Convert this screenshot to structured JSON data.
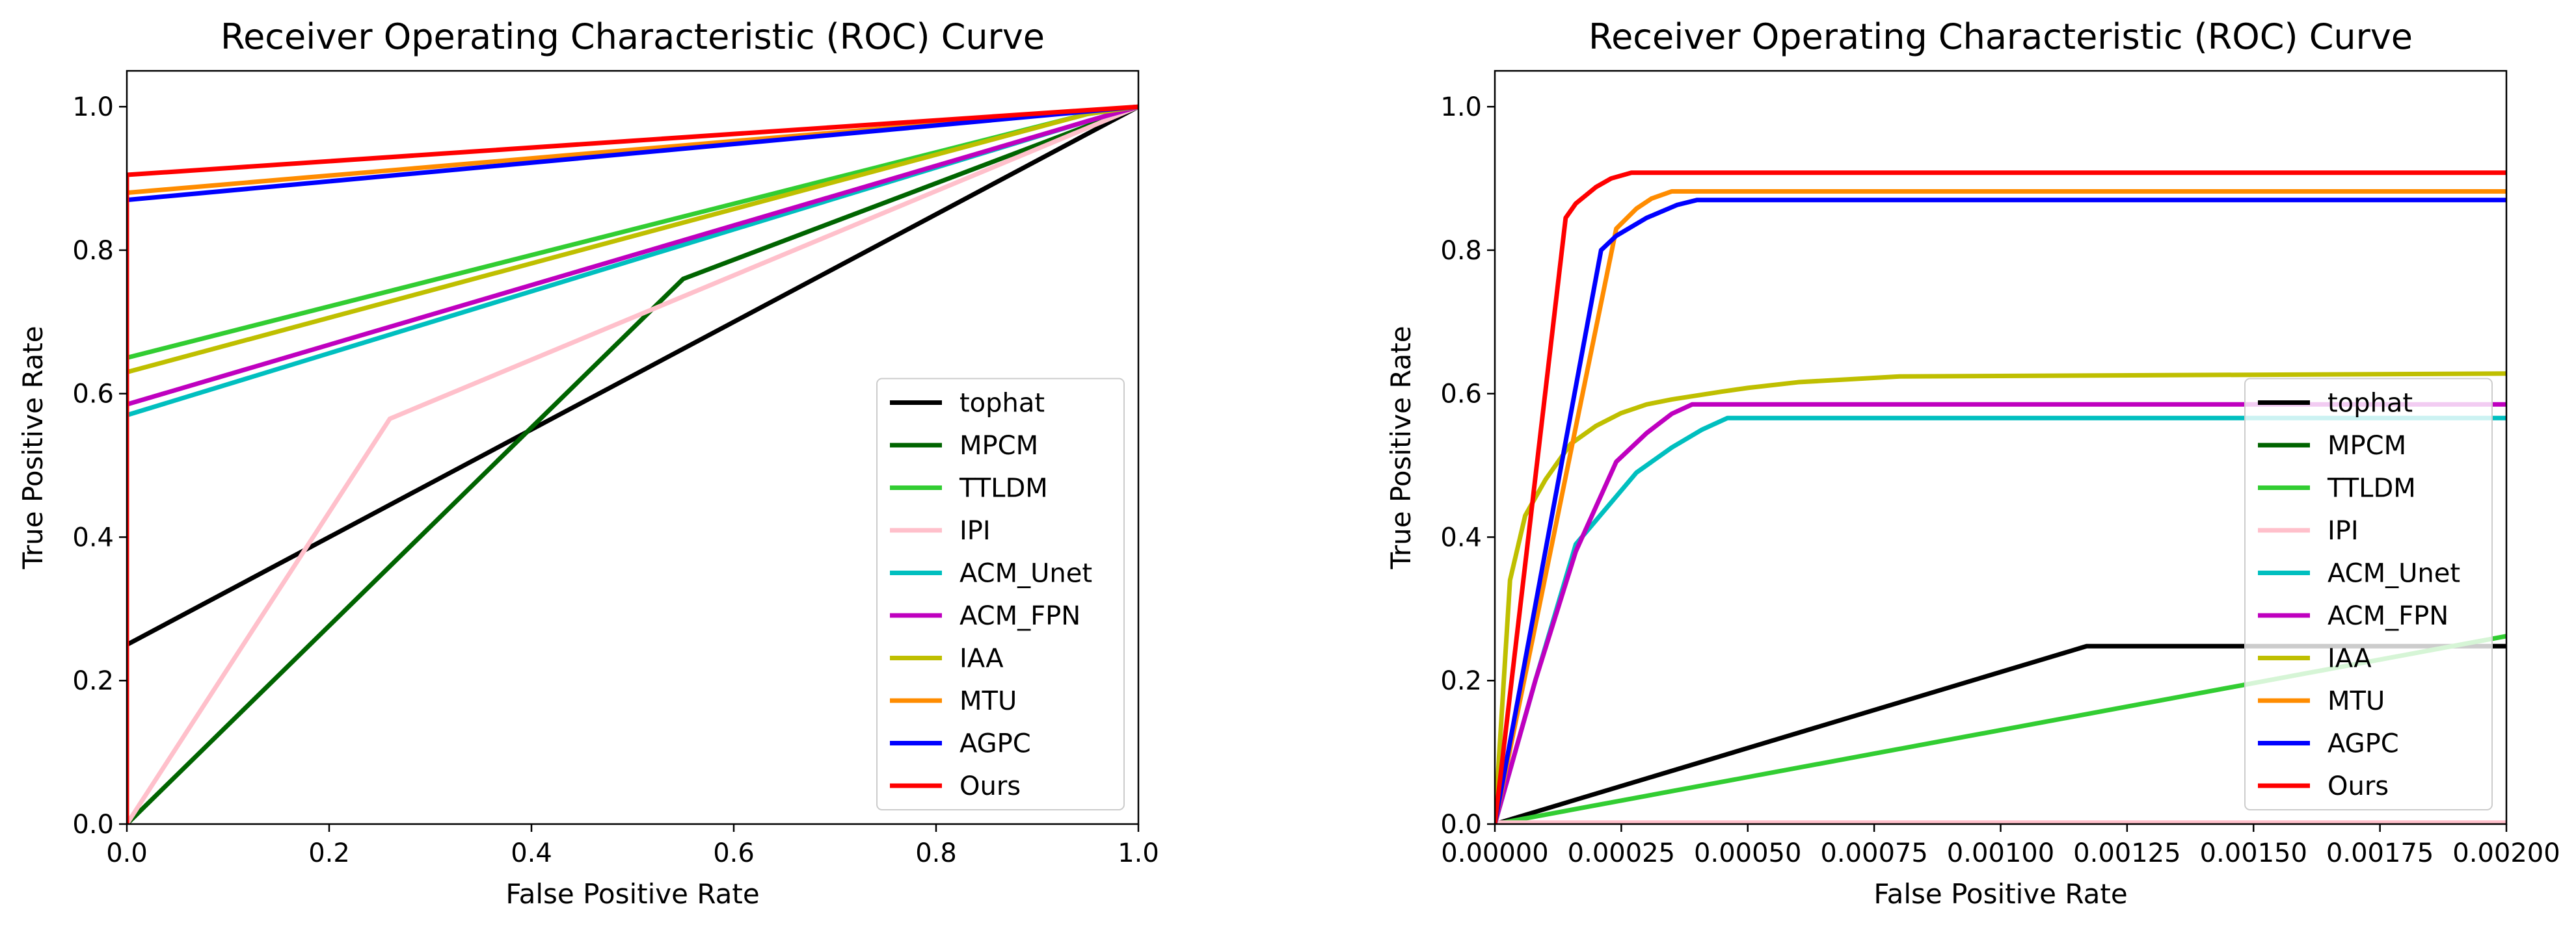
{
  "chart_data": [
    {
      "type": "line",
      "title": "Receiver Operating Characteristic (ROC) Curve",
      "xlabel": "False Positive Rate",
      "ylabel": "True Positive Rate",
      "xlim": [
        0,
        1
      ],
      "ylim": [
        0,
        1.05
      ],
      "xticks": [
        0,
        0.2,
        0.4,
        0.6,
        0.8,
        1.0
      ],
      "xtick_labels": [
        "0.0",
        "0.2",
        "0.4",
        "0.6",
        "0.8",
        "1.0"
      ],
      "yticks": [
        0,
        0.2,
        0.4,
        0.6,
        0.8,
        1.0
      ],
      "ytick_labels": [
        "0.0",
        "0.2",
        "0.4",
        "0.6",
        "0.8",
        "1.0"
      ],
      "legend_position": "lower-right",
      "series": [
        {
          "name": "tophat",
          "color": "#000000",
          "x": [
            0,
            0,
            1
          ],
          "y": [
            0,
            0.25,
            1.0
          ]
        },
        {
          "name": "MPCM",
          "color": "#006400",
          "x": [
            0,
            0.55,
            1
          ],
          "y": [
            0,
            0.76,
            1.0
          ]
        },
        {
          "name": "TTLDM",
          "color": "#32cd32",
          "x": [
            0,
            0,
            0.95,
            1
          ],
          "y": [
            0,
            0.65,
            0.99,
            1.0
          ]
        },
        {
          "name": "IPI",
          "color": "#ffc0cb",
          "x": [
            0,
            0.26,
            1
          ],
          "y": [
            0,
            0.565,
            1.0
          ]
        },
        {
          "name": "ACM_Unet",
          "color": "#00bfbf",
          "x": [
            0,
            0,
            0.95,
            1
          ],
          "y": [
            0,
            0.57,
            0.98,
            1.0
          ]
        },
        {
          "name": "ACM_FPN",
          "color": "#bf00bf",
          "x": [
            0,
            0,
            0.95,
            1
          ],
          "y": [
            0,
            0.585,
            0.98,
            1.0
          ]
        },
        {
          "name": "IAA",
          "color": "#bfbf00",
          "x": [
            0,
            0,
            0.95,
            1
          ],
          "y": [
            0,
            0.63,
            0.99,
            1.0
          ]
        },
        {
          "name": "MTU",
          "color": "#ff8c00",
          "x": [
            0,
            0,
            1
          ],
          "y": [
            0,
            0.88,
            1.0
          ]
        },
        {
          "name": "AGPC",
          "color": "#0000ff",
          "x": [
            0,
            0,
            1
          ],
          "y": [
            0,
            0.87,
            1.0
          ]
        },
        {
          "name": "Ours",
          "color": "#ff0000",
          "x": [
            0,
            0,
            1
          ],
          "y": [
            0,
            0.905,
            1.0
          ]
        }
      ]
    },
    {
      "type": "line",
      "title": "Receiver Operating Characteristic (ROC) Curve",
      "xlabel": "False Positive Rate",
      "ylabel": "True Positive Rate",
      "xlim": [
        0,
        0.002
      ],
      "ylim": [
        0,
        1.05
      ],
      "xticks": [
        0,
        0.00025,
        0.0005,
        0.00075,
        0.001,
        0.00125,
        0.0015,
        0.00175,
        0.002
      ],
      "xtick_labels": [
        "0.00000",
        "0.00025",
        "0.00050",
        "0.00075",
        "0.00100",
        "0.00125",
        "0.00150",
        "0.00175",
        "0.00200"
      ],
      "yticks": [
        0,
        0.2,
        0.4,
        0.6,
        0.8,
        1.0
      ],
      "ytick_labels": [
        "0.0",
        "0.2",
        "0.4",
        "0.6",
        "0.8",
        "1.0"
      ],
      "legend_position": "lower-right",
      "series": [
        {
          "name": "tophat",
          "color": "#000000",
          "x": [
            0,
            0.00117,
            0.002
          ],
          "y": [
            0,
            0.248,
            0.248
          ]
        },
        {
          "name": "MPCM",
          "color": "#006400",
          "x": [
            0,
            0.002
          ],
          "y": [
            0,
            0
          ]
        },
        {
          "name": "TTLDM",
          "color": "#32cd32",
          "x": [
            0,
            0.002
          ],
          "y": [
            0,
            0.262
          ]
        },
        {
          "name": "IPI",
          "color": "#ffc0cb",
          "x": [
            0,
            0.002
          ],
          "y": [
            0.002,
            0.002
          ]
        },
        {
          "name": "ACM_Unet",
          "color": "#00bfbf",
          "x": [
            0,
            8e-05,
            0.00016,
            0.00022,
            0.00028,
            0.00035,
            0.00041,
            0.00046,
            0.002
          ],
          "y": [
            0,
            0.2,
            0.39,
            0.44,
            0.49,
            0.525,
            0.55,
            0.566,
            0.566
          ]
        },
        {
          "name": "ACM_FPN",
          "color": "#bf00bf",
          "x": [
            0,
            8e-05,
            0.00016,
            0.00024,
            0.0003,
            0.00035,
            0.00039,
            0.002
          ],
          "y": [
            0,
            0.2,
            0.38,
            0.505,
            0.545,
            0.572,
            0.585,
            0.585
          ]
        },
        {
          "name": "IAA",
          "color": "#bfbf00",
          "x": [
            0,
            3e-05,
            6e-05,
            0.0001,
            0.00015,
            0.0002,
            0.00025,
            0.0003,
            0.00035,
            0.00045,
            0.0005,
            0.0006,
            0.0008,
            0.002
          ],
          "y": [
            0,
            0.34,
            0.43,
            0.48,
            0.53,
            0.555,
            0.573,
            0.585,
            0.592,
            0.603,
            0.608,
            0.616,
            0.624,
            0.628
          ]
        },
        {
          "name": "MTU",
          "color": "#ff8c00",
          "x": [
            0,
            0.00024,
            0.00028,
            0.00031,
            0.00035,
            0.002
          ],
          "y": [
            0,
            0.83,
            0.858,
            0.872,
            0.882,
            0.882
          ]
        },
        {
          "name": "AGPC",
          "color": "#0000ff",
          "x": [
            0,
            0.00021,
            0.00024,
            0.0003,
            0.00036,
            0.0004,
            0.002
          ],
          "y": [
            0,
            0.8,
            0.82,
            0.845,
            0.863,
            0.87,
            0.87
          ]
        },
        {
          "name": "Ours",
          "color": "#ff0000",
          "x": [
            0,
            0.00014,
            0.00016,
            0.0002,
            0.00023,
            0.00027,
            0.002
          ],
          "y": [
            0,
            0.845,
            0.865,
            0.888,
            0.9,
            0.908,
            0.908
          ]
        }
      ]
    }
  ]
}
